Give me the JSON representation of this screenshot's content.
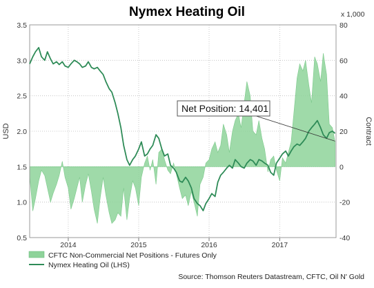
{
  "chart_data": {
    "type": "line",
    "title": "Nymex Heating Oil",
    "ylabel": "USD",
    "y2label": "Contract",
    "y2unit": "x 1,000",
    "ylim": [
      0.5,
      3.5
    ],
    "y2lim": [
      -40,
      80
    ],
    "yticks": [
      "0.5",
      "1.0",
      "1.5",
      "2.0",
      "2.5",
      "3.0",
      "3.5"
    ],
    "y2ticks": [
      "-40",
      "-20",
      "0",
      "20",
      "40",
      "60",
      "80"
    ],
    "xticks": [
      "2014",
      "2015",
      "2016",
      "2017"
    ],
    "xlim": [
      "2013-06-15",
      "2017-10-20"
    ],
    "grid": true,
    "legend_position": "bottom-left",
    "annotation": {
      "text": "Net Position: 14,401",
      "x": "2017-10-15",
      "y2": 14.4
    },
    "source": "Source: Thomson Reuters Datastream, CFTC, Oil N' Gold",
    "colors": {
      "area": "#8ed39a",
      "line": "#2e8b57",
      "grid": "#bbbbbb"
    },
    "series": [
      {
        "name": "CFTC Non-Commercial Net Positions - Futures Only",
        "axis": "right",
        "kind": "area",
        "x": [
          "2013-06-15",
          "2013-07-01",
          "2013-07-15",
          "2013-08-01",
          "2013-08-15",
          "2013-09-01",
          "2013-09-15",
          "2013-10-01",
          "2013-10-15",
          "2013-11-01",
          "2013-11-15",
          "2013-12-01",
          "2013-12-15",
          "2014-01-01",
          "2014-01-15",
          "2014-02-01",
          "2014-02-15",
          "2014-03-01",
          "2014-03-15",
          "2014-04-01",
          "2014-04-15",
          "2014-05-01",
          "2014-05-15",
          "2014-06-01",
          "2014-06-15",
          "2014-07-01",
          "2014-07-15",
          "2014-08-01",
          "2014-08-15",
          "2014-09-01",
          "2014-09-15",
          "2014-10-01",
          "2014-10-15",
          "2014-11-01",
          "2014-11-15",
          "2014-12-01",
          "2014-12-15",
          "2015-01-01",
          "2015-01-15",
          "2015-02-01",
          "2015-02-15",
          "2015-03-01",
          "2015-03-15",
          "2015-04-01",
          "2015-04-15",
          "2015-05-01",
          "2015-05-15",
          "2015-06-01",
          "2015-06-15",
          "2015-07-01",
          "2015-07-15",
          "2015-08-01",
          "2015-08-15",
          "2015-09-01",
          "2015-09-15",
          "2015-10-01",
          "2015-10-15",
          "2015-11-01",
          "2015-11-15",
          "2015-12-01",
          "2015-12-15",
          "2016-01-01",
          "2016-01-15",
          "2016-02-01",
          "2016-02-15",
          "2016-03-01",
          "2016-03-15",
          "2016-04-01",
          "2016-04-15",
          "2016-05-01",
          "2016-05-15",
          "2016-06-01",
          "2016-06-15",
          "2016-07-01",
          "2016-07-15",
          "2016-08-01",
          "2016-08-15",
          "2016-09-01",
          "2016-09-15",
          "2016-10-01",
          "2016-10-15",
          "2016-11-01",
          "2016-11-15",
          "2016-12-01",
          "2016-12-15",
          "2017-01-01",
          "2017-01-15",
          "2017-02-01",
          "2017-02-15",
          "2017-03-01",
          "2017-03-15",
          "2017-04-01",
          "2017-04-15",
          "2017-05-01",
          "2017-05-15",
          "2017-06-01",
          "2017-06-15",
          "2017-07-01",
          "2017-07-15",
          "2017-08-01",
          "2017-08-15",
          "2017-09-01",
          "2017-09-15",
          "2017-10-01",
          "2017-10-15"
        ],
        "values": [
          -5,
          -25,
          -18,
          -8,
          -2,
          -5,
          -12,
          -20,
          -15,
          -10,
          -5,
          3,
          -6,
          -12,
          -24,
          -18,
          -12,
          -6,
          -20,
          -10,
          -4,
          -14,
          -24,
          -32,
          -18,
          -6,
          -16,
          -26,
          -32,
          -30,
          -26,
          -28,
          -12,
          -30,
          -18,
          -8,
          -12,
          -22,
          -6,
          2,
          6,
          -2,
          4,
          -10,
          8,
          10,
          4,
          -2,
          -4,
          2,
          -4,
          -12,
          -18,
          -16,
          -22,
          -14,
          -20,
          -28,
          -10,
          -6,
          2,
          4,
          10,
          14,
          8,
          12,
          24,
          18,
          8,
          20,
          26,
          30,
          22,
          36,
          48,
          40,
          20,
          18,
          26,
          16,
          10,
          -3,
          4,
          6,
          -2,
          -8,
          5,
          2,
          8,
          14,
          30,
          50,
          58,
          54,
          60,
          46,
          36,
          62,
          58,
          48,
          64,
          52,
          24,
          22,
          14
        ]
      },
      {
        "name": "Nymex Heating Oil (LHS)",
        "axis": "left",
        "kind": "line",
        "x": [
          "2013-06-15",
          "2013-07-01",
          "2013-07-15",
          "2013-08-01",
          "2013-08-15",
          "2013-09-01",
          "2013-09-15",
          "2013-10-01",
          "2013-10-15",
          "2013-11-01",
          "2013-11-15",
          "2013-12-01",
          "2013-12-15",
          "2014-01-01",
          "2014-01-15",
          "2014-02-01",
          "2014-02-15",
          "2014-03-01",
          "2014-03-15",
          "2014-04-01",
          "2014-04-15",
          "2014-05-01",
          "2014-05-15",
          "2014-06-01",
          "2014-06-15",
          "2014-07-01",
          "2014-07-15",
          "2014-08-01",
          "2014-08-15",
          "2014-09-01",
          "2014-09-15",
          "2014-10-01",
          "2014-10-15",
          "2014-11-01",
          "2014-11-15",
          "2014-12-01",
          "2014-12-15",
          "2015-01-01",
          "2015-01-15",
          "2015-02-01",
          "2015-02-15",
          "2015-03-01",
          "2015-03-15",
          "2015-04-01",
          "2015-04-15",
          "2015-05-01",
          "2015-05-15",
          "2015-06-01",
          "2015-06-15",
          "2015-07-01",
          "2015-07-15",
          "2015-08-01",
          "2015-08-15",
          "2015-09-01",
          "2015-09-15",
          "2015-10-01",
          "2015-10-15",
          "2015-11-01",
          "2015-11-15",
          "2015-12-01",
          "2015-12-15",
          "2016-01-01",
          "2016-01-15",
          "2016-02-01",
          "2016-02-15",
          "2016-03-01",
          "2016-03-15",
          "2016-04-01",
          "2016-04-15",
          "2016-05-01",
          "2016-05-15",
          "2016-06-01",
          "2016-06-15",
          "2016-07-01",
          "2016-07-15",
          "2016-08-01",
          "2016-08-15",
          "2016-09-01",
          "2016-09-15",
          "2016-10-01",
          "2016-10-15",
          "2016-11-01",
          "2016-11-15",
          "2016-12-01",
          "2016-12-15",
          "2017-01-01",
          "2017-01-15",
          "2017-02-01",
          "2017-02-15",
          "2017-03-01",
          "2017-03-15",
          "2017-04-01",
          "2017-04-15",
          "2017-05-01",
          "2017-05-15",
          "2017-06-01",
          "2017-06-15",
          "2017-07-01",
          "2017-07-15",
          "2017-08-01",
          "2017-08-15",
          "2017-09-01",
          "2017-09-15",
          "2017-10-01",
          "2017-10-15"
        ],
        "values": [
          2.95,
          3.05,
          3.12,
          3.18,
          3.05,
          3.0,
          3.12,
          3.02,
          2.95,
          2.98,
          2.94,
          2.98,
          2.92,
          2.9,
          2.95,
          3.0,
          2.98,
          2.95,
          2.9,
          2.92,
          2.98,
          2.9,
          2.88,
          2.9,
          2.85,
          2.8,
          2.7,
          2.6,
          2.55,
          2.4,
          2.25,
          2.05,
          1.8,
          1.6,
          1.52,
          1.6,
          1.65,
          1.75,
          1.85,
          1.65,
          1.68,
          1.75,
          1.8,
          1.95,
          1.9,
          1.75,
          1.65,
          1.68,
          1.52,
          1.48,
          1.42,
          1.3,
          1.28,
          1.35,
          1.3,
          1.2,
          1.05,
          0.98,
          0.95,
          0.88,
          0.98,
          1.05,
          1.12,
          1.08,
          1.28,
          1.38,
          1.42,
          1.48,
          1.52,
          1.48,
          1.6,
          1.55,
          1.5,
          1.48,
          1.55,
          1.6,
          1.58,
          1.52,
          1.6,
          1.58,
          1.55,
          1.52,
          1.42,
          1.38,
          1.55,
          1.62,
          1.68,
          1.72,
          1.65,
          1.72,
          1.78,
          1.82,
          1.8,
          1.85,
          1.9,
          2.0,
          2.05,
          2.1,
          2.15,
          2.05,
          1.95,
          1.9,
          1.98,
          2.0,
          1.97
        ]
      }
    ]
  }
}
